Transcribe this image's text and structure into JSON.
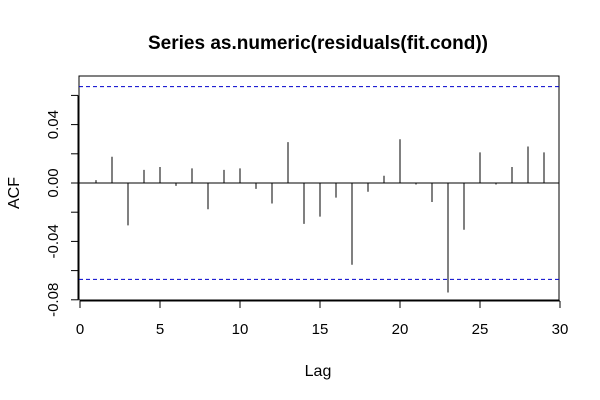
{
  "chart_data": {
    "type": "bar",
    "title": "Series as.numeric(residuals(fit.cond))",
    "xlabel": "Lag",
    "ylabel": "ACF",
    "xlim": [
      0,
      30
    ],
    "ylim": [
      -0.08,
      0.07
    ],
    "x_ticks": [
      "0",
      "5",
      "10",
      "15",
      "20",
      "25",
      "30"
    ],
    "y_ticks": [
      "-0.08",
      "-0.04",
      "0.00",
      "0.04"
    ],
    "confidence_bound": 0.066,
    "lags": [
      1,
      2,
      3,
      4,
      5,
      6,
      7,
      8,
      9,
      10,
      11,
      12,
      13,
      14,
      15,
      16,
      17,
      18,
      19,
      20,
      21,
      22,
      23,
      24,
      25,
      26,
      27,
      28,
      29
    ],
    "values": [
      0.002,
      0.018,
      -0.029,
      0.009,
      0.011,
      -0.002,
      0.01,
      -0.018,
      0.009,
      0.01,
      -0.004,
      -0.014,
      0.028,
      -0.028,
      -0.023,
      -0.01,
      -0.056,
      -0.006,
      0.005,
      0.03,
      -0.001,
      -0.013,
      -0.075,
      -0.032,
      0.021,
      -0.001,
      0.011,
      0.025,
      0.021
    ],
    "grid": false,
    "colors": {
      "bars": "#000000",
      "ci_lines": "#0000cc",
      "zero_line": "#000000"
    }
  }
}
